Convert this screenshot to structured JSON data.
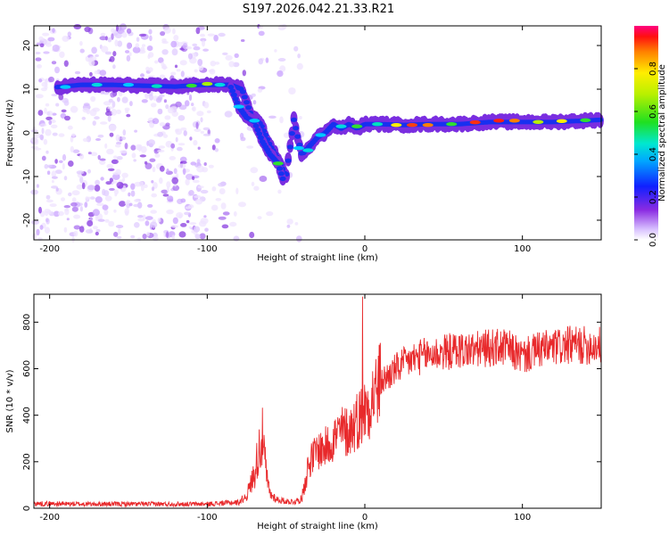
{
  "title": "S197.2026.042.21.33.R21",
  "chart_data": [
    {
      "type": "heatmap",
      "xlabel": "Height of straight line (km)",
      "ylabel": "Frequency (Hz)",
      "xlim": [
        -210,
        150
      ],
      "ylim": [
        -24.5,
        24.5
      ],
      "xticks": [
        -200,
        -100,
        0,
        100
      ],
      "yticks": [
        20,
        10,
        0,
        -10,
        -20
      ],
      "colorbar": {
        "label": "Normalized spectral amplitude",
        "range": [
          0,
          1
        ],
        "ticks": [
          "0.0",
          "0.2",
          "0.4",
          "0.6",
          "0.8"
        ],
        "colormap": "rainbow"
      },
      "ridge": {
        "name": "dominant frequency track",
        "x": [
          -195,
          -180,
          -160,
          -140,
          -120,
          -105,
          -95,
          -85,
          -78,
          -72,
          -66,
          -60,
          -55,
          -50,
          -45,
          -40,
          -35,
          -30,
          -25,
          -20,
          -15,
          -10,
          -5,
          0,
          10,
          25,
          40,
          60,
          80,
          100,
          120,
          140,
          150
        ],
        "y": [
          10.5,
          11,
          11,
          10.8,
          10.6,
          11,
          11,
          11,
          10,
          4,
          2,
          -3,
          -6,
          -10,
          3,
          -5,
          -3,
          -1,
          0,
          2,
          1,
          2,
          1,
          2,
          2,
          1.8,
          2,
          2,
          2.5,
          2.5,
          2.5,
          2.8,
          3
        ]
      },
      "secondary_branch": {
        "name": "descending branch",
        "x": [
          -85,
          -80,
          -75,
          -70,
          -65,
          -60,
          -55,
          -52
        ],
        "y": [
          10.5,
          6,
          3.5,
          2.5,
          -2,
          -5,
          -7,
          -10.5
        ]
      }
    },
    {
      "type": "line",
      "xlabel": "Height of straight line (km)",
      "ylabel": "SNR (10 * v/v)",
      "xlim": [
        -210,
        150
      ],
      "ylim": [
        0,
        920
      ],
      "xticks": [
        -200,
        -100,
        0,
        100
      ],
      "yticks": [
        0,
        200,
        400,
        600,
        800
      ],
      "color": "#e8292b",
      "envelope": {
        "x": [
          -210,
          -180,
          -150,
          -120,
          -100,
          -90,
          -80,
          -75,
          -70,
          -67,
          -65,
          -62,
          -60,
          -55,
          -50,
          -45,
          -40,
          -38,
          -35,
          -30,
          -25,
          -20,
          -15,
          -10,
          -5,
          -2,
          0,
          5,
          10,
          20,
          30,
          40,
          50,
          60,
          70,
          80,
          90,
          100,
          110,
          120,
          130,
          140,
          150
        ],
        "y": [
          20,
          18,
          18,
          18,
          18,
          22,
          25,
          55,
          150,
          260,
          300,
          120,
          60,
          35,
          30,
          28,
          40,
          120,
          200,
          250,
          260,
          300,
          330,
          330,
          380,
          400,
          420,
          480,
          540,
          600,
          640,
          660,
          670,
          680,
          680,
          690,
          690,
          650,
          680,
          690,
          700,
          700,
          700
        ]
      },
      "spike": {
        "x": -1.5,
        "y": 910
      }
    }
  ]
}
